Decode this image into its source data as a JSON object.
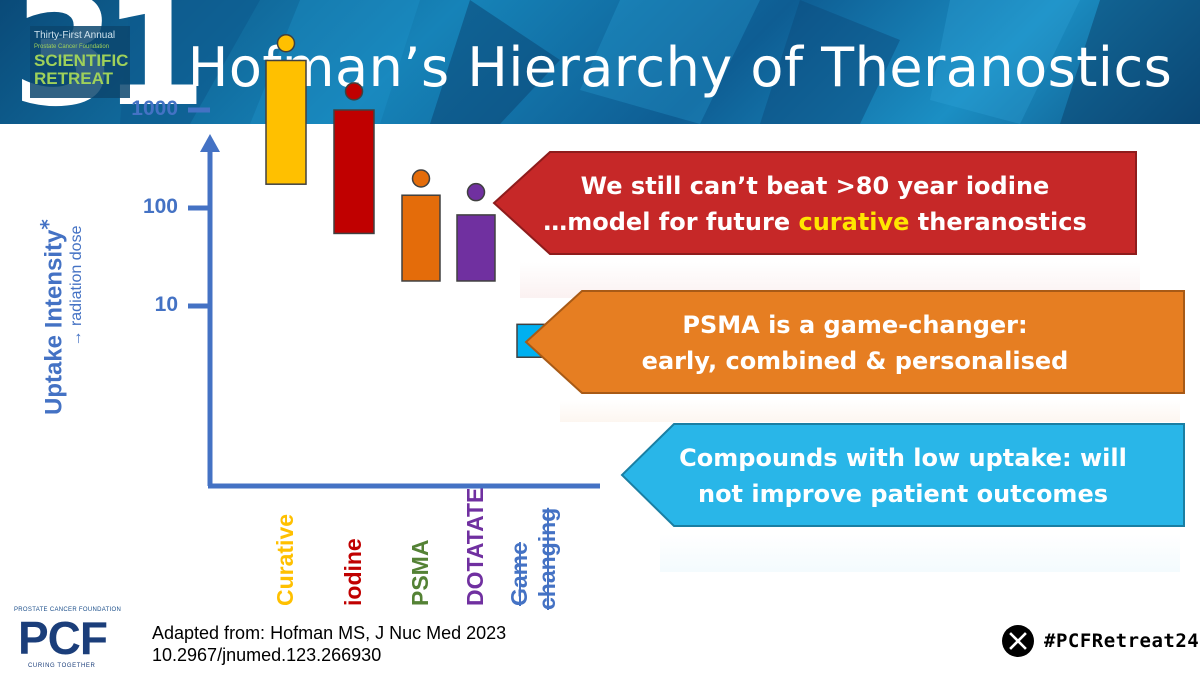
{
  "header": {
    "title": "Hofman’s Hierarchy of Theranostics",
    "logo": {
      "number": "31",
      "line1": "Thirty-First Annual",
      "line2": "Prostate Cancer Foundation",
      "line3": "SCIENTIFIC",
      "line4": "RETREAT"
    }
  },
  "chart_data": {
    "type": "bar",
    "ylabel": "Uptake Intensity",
    "ylabel_mark": "*",
    "ylabel_sub": "→ radiation dose",
    "y_scale": "log",
    "y_ticks": [
      {
        "value": 10,
        "label": "10"
      },
      {
        "value": 100,
        "label": "100"
      },
      {
        "value": 1000,
        "label": "1000"
      }
    ],
    "categories": [
      "Curative",
      "iodine",
      "PSMA",
      "DOTATATE",
      "Game changing"
    ],
    "category_lines": [
      [
        "Curative"
      ],
      [
        "iodine"
      ],
      [
        "PSMA"
      ],
      [
        "DOTATATE"
      ],
      [
        "Game",
        "changing"
      ]
    ],
    "strikethrough": [
      false,
      false,
      false,
      false,
      true
    ],
    "ranges": [
      {
        "low": 175,
        "high": 3200,
        "marker": 4800
      },
      {
        "low": 55,
        "high": 1000,
        "marker": 1550
      },
      {
        "low": 18,
        "high": 135,
        "marker": 200
      },
      {
        "low": 18,
        "high": 85,
        "marker": 145
      },
      {
        "low": 3,
        "high": 6.5,
        "marker": null
      }
    ],
    "colors": [
      "#ffc000",
      "#c00000",
      "#e46c0a",
      "#7030a0",
      "#00b0f0"
    ],
    "label_colors": [
      "#ffc000",
      "#c00000",
      "#548235",
      "#7030a0",
      "#4472c4"
    ],
    "axis_color": "#4472c4"
  },
  "callouts": [
    {
      "line1": "We still can’t beat >80 year iodine",
      "line2_before": "…model for future ",
      "line2_highlight": "curative",
      "line2_after": " theranostics",
      "color": "#c62828"
    },
    {
      "line1": "PSMA is a game-changer:",
      "line2": "early, combined & personalised",
      "color": "#e67e22"
    },
    {
      "line1": "Compounds with low uptake: will",
      "line2": "not improve patient outcomes",
      "color": "#29b6e8"
    }
  ],
  "footer": {
    "pcf_small": "PROSTATE CANCER FOUNDATION",
    "pcf_big": "PCF",
    "pcf_tag": "CURING TOGETHER",
    "source_line1": "Adapted from: Hofman MS, J Nuc Med 2023",
    "source_line2": "10.2967/jnumed.123.266930",
    "hashtag": "#PCFRetreat24"
  }
}
